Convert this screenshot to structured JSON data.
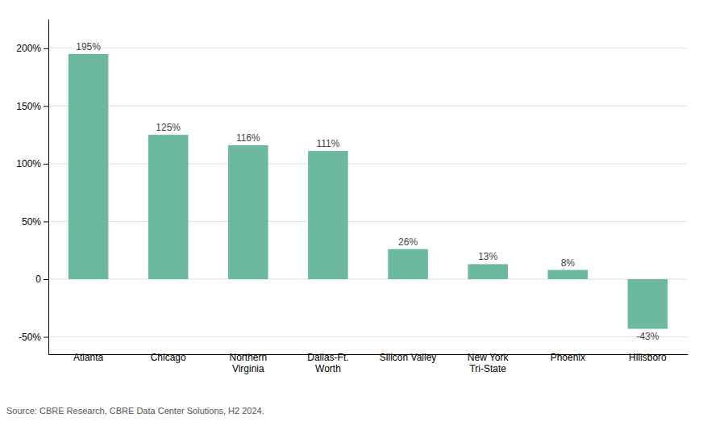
{
  "chart_data": {
    "type": "bar",
    "categories": [
      "Atlanta",
      "Chicago",
      "Northern\nVirginia",
      "Dallas-Ft.\nWorth",
      "Silicon Valley",
      "New York\nTri-State",
      "Phoenix",
      "Hillsboro"
    ],
    "values": [
      195,
      125,
      116,
      111,
      26,
      13,
      8,
      -43
    ],
    "value_labels": [
      "195%",
      "125%",
      "116%",
      "111%",
      "26%",
      "13%",
      "8%",
      "-43%"
    ],
    "data_labels": true,
    "color": "#6db8a0",
    "ylim": [
      -65,
      225
    ],
    "yticks": [
      {
        "value": -50,
        "label": "-50%"
      },
      0,
      {
        "value": 50,
        "label": "50%"
      },
      {
        "value": 100,
        "label": "100%"
      },
      {
        "value": 150,
        "label": "150%"
      },
      {
        "value": 200,
        "label": "200%"
      }
    ],
    "grid": true,
    "source": "Source: CBRE Research, CBRE Data Center Solutions, H2 2024."
  }
}
